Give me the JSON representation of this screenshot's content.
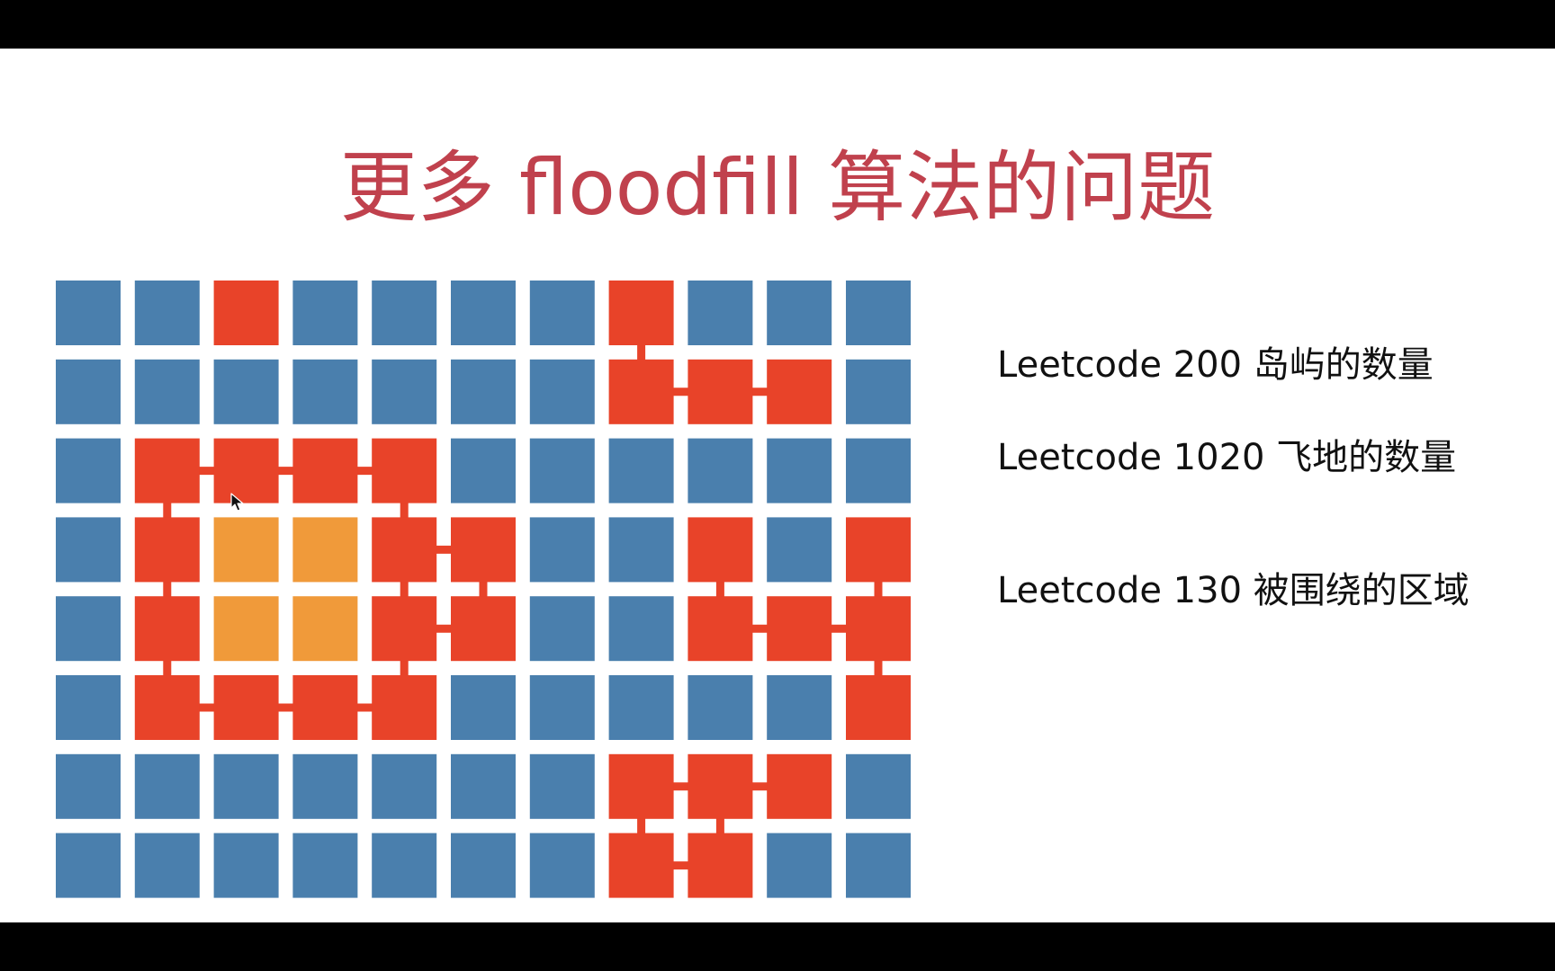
{
  "slide": {
    "title": "更多 floodfill 算法的问题",
    "title_color": "#c0414d"
  },
  "problems": [
    {
      "label": "Leetcode 200 岛屿的数量"
    },
    {
      "label": "Leetcode 1020 飞地的数量"
    },
    {
      "label": "Leetcode 130 被围绕的区域"
    }
  ],
  "grid": {
    "rows": 8,
    "cols": 11,
    "legend_colors": {
      "W": "#4a7fad",
      "R": "#e84329",
      "O": "#f09a3a"
    },
    "connector_color": "#e84329",
    "cells": [
      "WWRWWWWRWWW",
      "WWWWWWWRRRW",
      "WRRRRWWWWWW",
      "WROORRWWRWR",
      "WROORRWWRRR",
      "WRRRRWWWWWR",
      "WWWWWWWRRRW",
      "WWWWWWWRRWW"
    ],
    "connectors": [
      {
        "r1": 0,
        "c1": 7,
        "r2": 1,
        "c2": 7
      },
      {
        "r1": 1,
        "c1": 7,
        "r2": 1,
        "c2": 8
      },
      {
        "r1": 1,
        "c1": 8,
        "r2": 1,
        "c2": 9
      },
      {
        "r1": 2,
        "c1": 1,
        "r2": 2,
        "c2": 2
      },
      {
        "r1": 2,
        "c1": 2,
        "r2": 2,
        "c2": 3
      },
      {
        "r1": 2,
        "c1": 3,
        "r2": 2,
        "c2": 4
      },
      {
        "r1": 2,
        "c1": 1,
        "r2": 3,
        "c2": 1
      },
      {
        "r1": 2,
        "c1": 4,
        "r2": 3,
        "c2": 4
      },
      {
        "r1": 3,
        "c1": 1,
        "r2": 4,
        "c2": 1
      },
      {
        "r1": 3,
        "c1": 4,
        "r2": 3,
        "c2": 5
      },
      {
        "r1": 3,
        "c1": 4,
        "r2": 4,
        "c2": 4
      },
      {
        "r1": 3,
        "c1": 5,
        "r2": 4,
        "c2": 5
      },
      {
        "r1": 4,
        "c1": 4,
        "r2": 4,
        "c2": 5
      },
      {
        "r1": 4,
        "c1": 1,
        "r2": 5,
        "c2": 1
      },
      {
        "r1": 4,
        "c1": 4,
        "r2": 5,
        "c2": 4
      },
      {
        "r1": 5,
        "c1": 1,
        "r2": 5,
        "c2": 2
      },
      {
        "r1": 5,
        "c1": 2,
        "r2": 5,
        "c2": 3
      },
      {
        "r1": 5,
        "c1": 3,
        "r2": 5,
        "c2": 4
      },
      {
        "r1": 3,
        "c1": 8,
        "r2": 4,
        "c2": 8
      },
      {
        "r1": 4,
        "c1": 8,
        "r2": 4,
        "c2": 9
      },
      {
        "r1": 4,
        "c1": 9,
        "r2": 4,
        "c2": 10
      },
      {
        "r1": 3,
        "c1": 10,
        "r2": 4,
        "c2": 10
      },
      {
        "r1": 4,
        "c1": 10,
        "r2": 5,
        "c2": 10
      },
      {
        "r1": 6,
        "c1": 7,
        "r2": 6,
        "c2": 8
      },
      {
        "r1": 6,
        "c1": 8,
        "r2": 6,
        "c2": 9
      },
      {
        "r1": 6,
        "c1": 7,
        "r2": 7,
        "c2": 7
      },
      {
        "r1": 6,
        "c1": 8,
        "r2": 7,
        "c2": 8
      },
      {
        "r1": 7,
        "c1": 7,
        "r2": 7,
        "c2": 8
      }
    ]
  }
}
